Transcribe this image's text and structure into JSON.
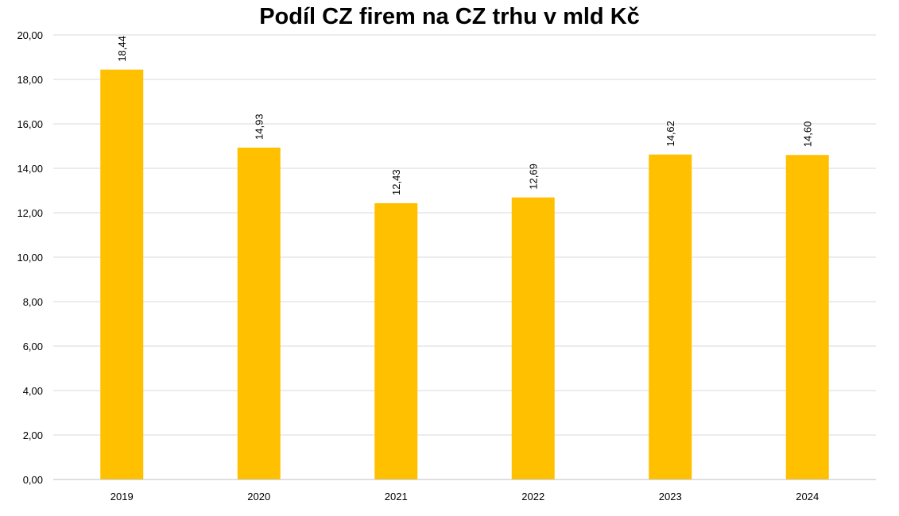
{
  "chart_data": {
    "type": "bar",
    "title": "Podíl CZ firem na CZ trhu v mld Kč",
    "xlabel": "",
    "ylabel": "",
    "categories": [
      "2019",
      "2020",
      "2021",
      "2022",
      "2023",
      "2024"
    ],
    "values": [
      18.44,
      14.93,
      12.43,
      12.69,
      14.62,
      14.6
    ],
    "value_labels": [
      "18,44",
      "14,93",
      "12,43",
      "12,69",
      "14,62",
      "14,60"
    ],
    "ylim": [
      0,
      20
    ],
    "y_ticks": [
      "0,00",
      "2,00",
      "4,00",
      "6,00",
      "8,00",
      "10,00",
      "12,00",
      "14,00",
      "16,00",
      "18,00",
      "20,00"
    ],
    "y_tick_values": [
      0,
      2,
      4,
      6,
      8,
      10,
      12,
      14,
      16,
      18,
      20
    ],
    "grid": true,
    "legend": "none",
    "colors": {
      "bar": "#FFC000",
      "grid": "#D9D9D9",
      "axis": "#BFBFBF"
    }
  }
}
